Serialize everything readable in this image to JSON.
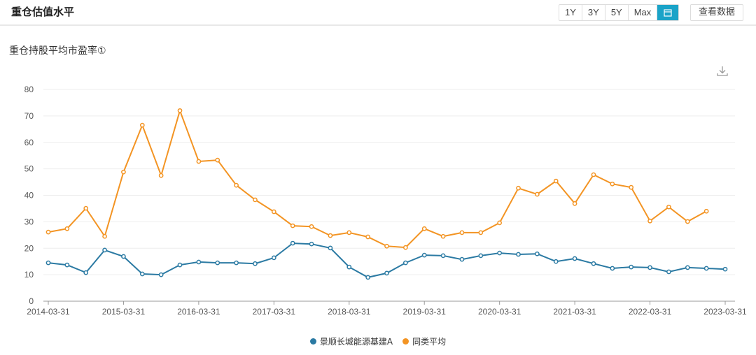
{
  "header": {
    "title": "重仓估值水平",
    "range_buttons": [
      "1Y",
      "3Y",
      "5Y",
      "Max"
    ],
    "calendar_icon": "calendar-icon",
    "view_data_label": "查看数据",
    "accent_color": "#1aa3c8"
  },
  "download_icon": "download-icon",
  "chart_data": {
    "type": "line",
    "title": "重仓持股平均市盈率①",
    "ylim": [
      0,
      80
    ],
    "yticks": [
      0,
      10,
      20,
      30,
      40,
      50,
      60,
      70,
      80
    ],
    "xtick_labels": [
      "2014-03-31",
      "2015-03-31",
      "2016-03-31",
      "2017-03-31",
      "2018-03-31",
      "2019-03-31",
      "2020-03-31",
      "2021-03-31",
      "2022-03-31",
      "2023-03-31"
    ],
    "x": [
      "2014-03-31",
      "2014-06-30",
      "2014-09-30",
      "2014-12-31",
      "2015-03-31",
      "2015-06-30",
      "2015-09-30",
      "2015-12-31",
      "2016-03-31",
      "2016-06-30",
      "2016-09-30",
      "2016-12-31",
      "2017-03-31",
      "2017-06-30",
      "2017-09-30",
      "2017-12-31",
      "2018-03-31",
      "2018-06-30",
      "2018-09-30",
      "2018-12-31",
      "2019-03-31",
      "2019-06-30",
      "2019-09-30",
      "2019-12-31",
      "2020-03-31",
      "2020-06-30",
      "2020-09-30",
      "2020-12-31",
      "2021-03-31",
      "2021-06-30",
      "2021-09-30",
      "2021-12-31",
      "2022-03-31",
      "2022-06-30",
      "2022-09-30",
      "2022-12-31",
      "2023-03-31"
    ],
    "grid": true,
    "legend_position": "bottom",
    "series": [
      {
        "name": "景顺长城能源基建A",
        "color": "#2b7aa3",
        "values": [
          14.5,
          13.7,
          10.8,
          19.3,
          16.9,
          10.3,
          10.0,
          13.7,
          14.8,
          14.5,
          14.5,
          14.2,
          16.4,
          21.9,
          21.6,
          20.1,
          12.9,
          9.0,
          10.6,
          14.5,
          17.4,
          17.2,
          15.8,
          17.2,
          18.2,
          17.7,
          17.9,
          15.0,
          16.1,
          14.2,
          12.4,
          12.9,
          12.7,
          11.1,
          12.7,
          12.4,
          12.1
        ]
      },
      {
        "name": "同类平均",
        "color": "#f39423",
        "values": [
          26.1,
          27.4,
          35.1,
          24.5,
          48.8,
          66.5,
          47.5,
          72.0,
          52.8,
          53.3,
          43.8,
          38.3,
          33.8,
          28.5,
          28.2,
          24.8,
          25.9,
          24.3,
          20.8,
          20.3,
          27.4,
          24.5,
          25.9,
          25.9,
          29.6,
          42.7,
          40.4,
          45.4,
          36.9,
          47.8,
          44.3,
          43.0,
          30.3,
          35.6,
          30.1,
          34.0,
          null
        ]
      }
    ]
  }
}
